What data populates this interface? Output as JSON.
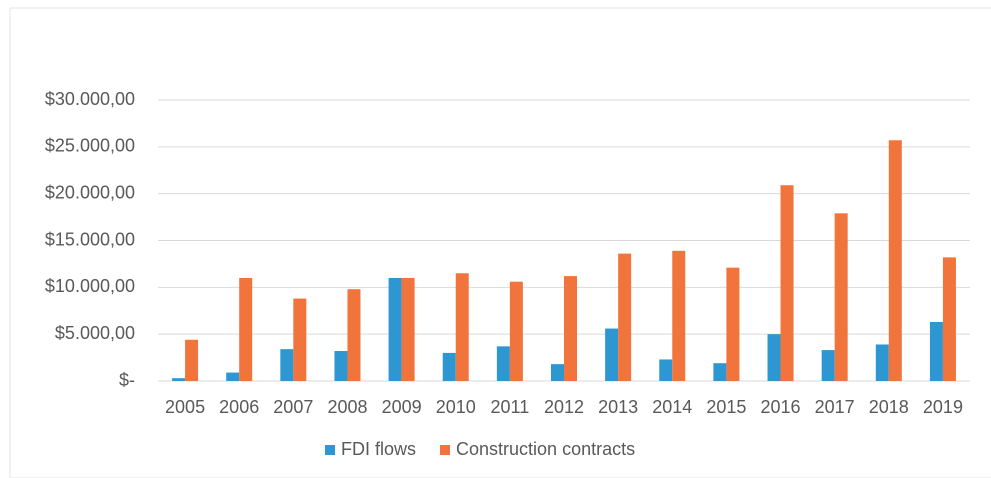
{
  "chart_data": {
    "type": "bar",
    "categories": [
      "2005",
      "2006",
      "2007",
      "2008",
      "2009",
      "2010",
      "2011",
      "2012",
      "2013",
      "2014",
      "2015",
      "2016",
      "2017",
      "2018",
      "2019"
    ],
    "series": [
      {
        "name": "FDI flows",
        "color": "#2e96d0",
        "values": [
          300,
          900,
          3400,
          3200,
          11000,
          3000,
          3700,
          1800,
          5600,
          2300,
          1900,
          5000,
          3300,
          3900,
          6300
        ]
      },
      {
        "name": "Construction contracts",
        "color": "#f0743b",
        "values": [
          4400,
          11000,
          8800,
          9800,
          11000,
          11500,
          10600,
          11200,
          13600,
          13900,
          12100,
          20900,
          17900,
          25700,
          13200
        ]
      }
    ],
    "ylim": [
      0,
      30000
    ],
    "yticks": [
      {
        "value": 0,
        "label": "$-"
      },
      {
        "value": 5000,
        "label": "$5.000,00"
      },
      {
        "value": 10000,
        "label": "$10.000,00"
      },
      {
        "value": 15000,
        "label": "$15.000,00"
      },
      {
        "value": 20000,
        "label": "$20.000,00"
      },
      {
        "value": 25000,
        "label": "$25.000,00"
      },
      {
        "value": 30000,
        "label": "$30.000,00"
      }
    ],
    "grid": true,
    "legend": "bottom"
  }
}
